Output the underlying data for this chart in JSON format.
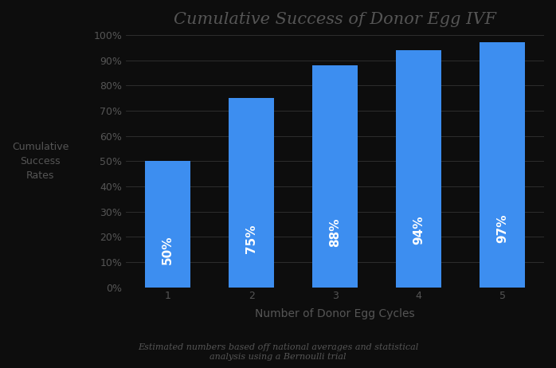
{
  "title": "Cumulative Success of Donor Egg IVF",
  "categories": [
    1,
    2,
    3,
    4,
    5
  ],
  "values": [
    50,
    75,
    88,
    94,
    97
  ],
  "labels": [
    "50%",
    "75%",
    "88%",
    "94%",
    "97%"
  ],
  "bar_color": "#3d8ef0",
  "background_color": "#0d0d0d",
  "title_color": "#555555",
  "text_color": "#ffffff",
  "tick_color": "#555555",
  "grid_color": "#333333",
  "xlabel": "Number of Donor Egg Cycles",
  "xlabel_color": "#555555",
  "ylabel": "Cumulative\nSuccess\nRates",
  "subtitle": "Estimated numbers based off national averages and statistical\nanalysis using a Bernoulli trial",
  "subtitle_color": "#555555",
  "ylim": [
    0,
    100
  ],
  "yticks": [
    0,
    10,
    20,
    30,
    40,
    50,
    60,
    70,
    80,
    90,
    100
  ],
  "ytick_labels": [
    "0%",
    "10%",
    "20%",
    "30%",
    "40%",
    "50%",
    "60%",
    "70%",
    "80%",
    "90%",
    "100%"
  ],
  "title_fontsize": 15,
  "label_fontsize": 10,
  "tick_fontsize": 9,
  "bar_label_fontsize": 11,
  "subtitle_fontsize": 8,
  "ylabel_fontsize": 9
}
